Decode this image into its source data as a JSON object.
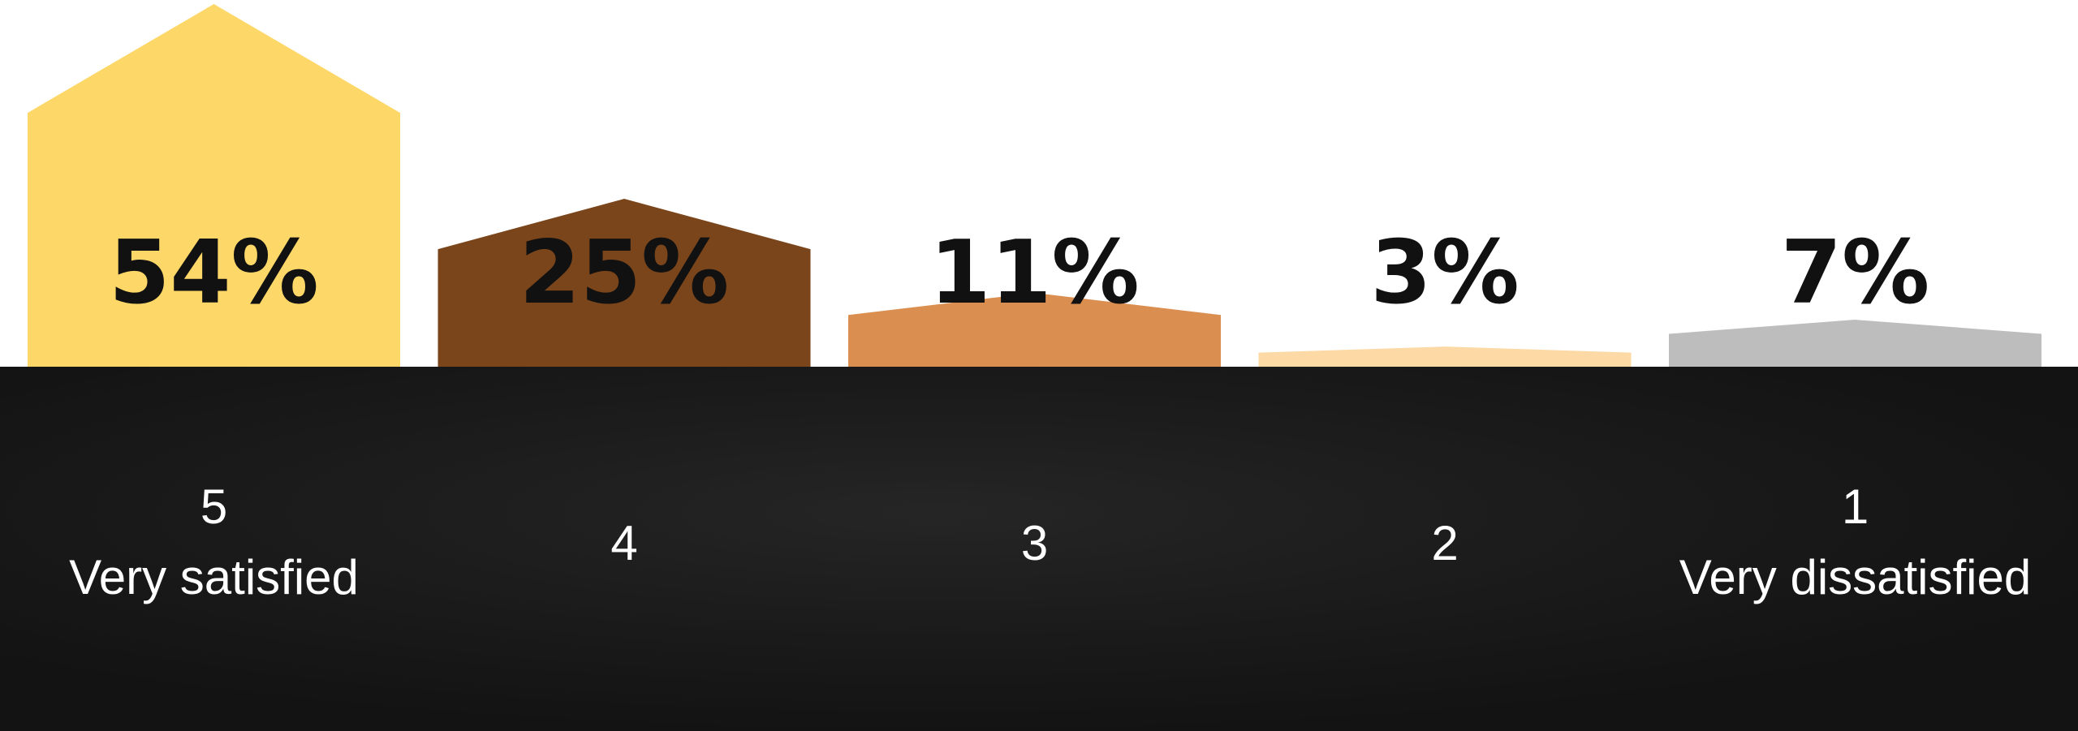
{
  "chart_data": {
    "type": "house-bar",
    "categories": [
      "5",
      "4",
      "3",
      "2",
      "1"
    ],
    "category_descriptions": [
      "Very satisfied",
      null,
      null,
      null,
      "Very dissatisfied"
    ],
    "values": [
      54,
      25,
      11,
      3,
      7
    ],
    "value_labels": [
      "54%",
      "25%",
      "11%",
      "3%",
      "7%"
    ],
    "colors": [
      "#fdd868",
      "#7a451b",
      "#da8e4f",
      "#fdd9a6",
      "#bdbdbd"
    ]
  }
}
